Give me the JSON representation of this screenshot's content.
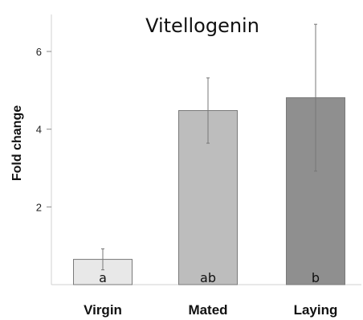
{
  "chart_data": {
    "type": "bar",
    "title": "Vitellogenin",
    "xlabel": "",
    "ylabel": "Fold change",
    "ylim": [
      0,
      7
    ],
    "yticks": [
      2,
      4,
      6
    ],
    "categories": [
      "Virgin",
      "Mated",
      "Laying"
    ],
    "values": [
      0.65,
      4.48,
      4.81
    ],
    "error_upper": [
      0.92,
      5.32,
      6.7
    ],
    "error_lower": [
      0.38,
      3.64,
      2.92
    ],
    "significance_labels": [
      "a",
      "ab",
      "b"
    ],
    "colors": [
      "#e8e8e8",
      "#bdbdbd",
      "#8f8f8f"
    ],
    "grid": false,
    "legend": "none"
  }
}
